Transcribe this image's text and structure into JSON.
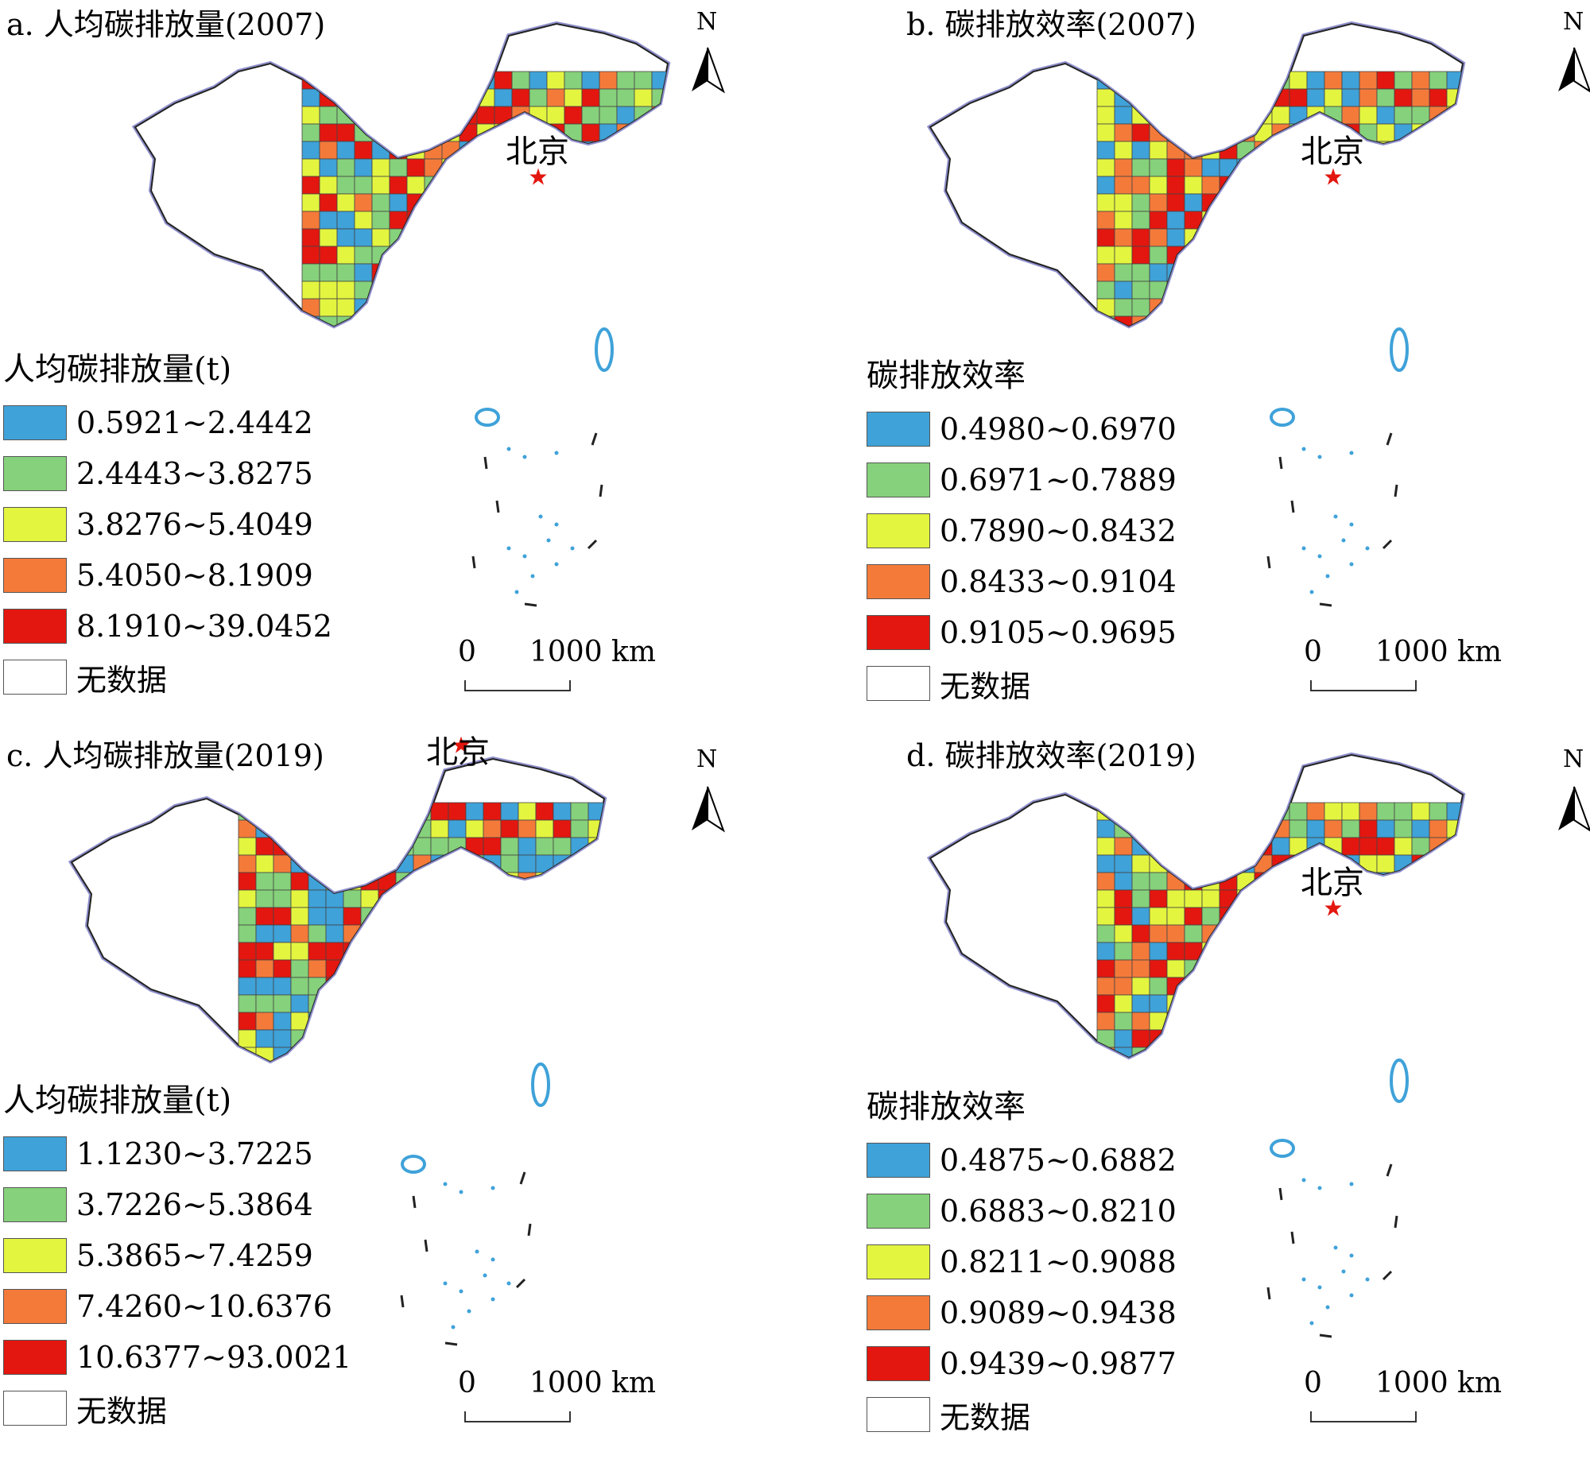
{
  "panels": [
    {
      "title": "a. 人均碳排放量(2007)",
      "beijing": "北京",
      "north": "N",
      "legend_title": "人均碳排放量(t)",
      "legend": [
        {
          "label": "0.5921~2.4442",
          "color": "#3fa2d9"
        },
        {
          "label": "2.4443~3.8275",
          "color": "#86d17b"
        },
        {
          "label": "3.8276~5.4049",
          "color": "#e3f53f"
        },
        {
          "label": "5.4050~8.1909",
          "color": "#f47a3a"
        },
        {
          "label": "8.1910~39.0452",
          "color": "#e3170f"
        },
        {
          "label": "无数据",
          "color": "#ffffff"
        }
      ],
      "scale_zero": "0",
      "scale_distance": "1000 km"
    },
    {
      "title": "b. 碳排放效率(2007)",
      "beijing": "北京",
      "north": "N",
      "legend_title": "碳排放效率",
      "legend": [
        {
          "label": "0.4980~0.6970",
          "color": "#3fa2d9"
        },
        {
          "label": "0.6971~0.7889",
          "color": "#86d17b"
        },
        {
          "label": "0.7890~0.8432",
          "color": "#e3f53f"
        },
        {
          "label": "0.8433~0.9104",
          "color": "#f47a3a"
        },
        {
          "label": "0.9105~0.9695",
          "color": "#e3170f"
        },
        {
          "label": "无数据",
          "color": "#ffffff"
        }
      ],
      "scale_zero": "0",
      "scale_distance": "1000 km"
    },
    {
      "title": "c. 人均碳排放量(2019)",
      "beijing": "北京",
      "north": "N",
      "legend_title": "人均碳排放量(t)",
      "legend": [
        {
          "label": "1.1230~3.7225",
          "color": "#3fa2d9"
        },
        {
          "label": "3.7226~5.3864",
          "color": "#86d17b"
        },
        {
          "label": "5.3865~7.4259",
          "color": "#e3f53f"
        },
        {
          "label": "7.4260~10.6376",
          "color": "#f47a3a"
        },
        {
          "label": "10.6377~93.0021",
          "color": "#e3170f"
        },
        {
          "label": "无数据",
          "color": "#ffffff"
        }
      ],
      "scale_zero": "0",
      "scale_distance": "1000 km"
    },
    {
      "title": "d. 碳排放效率(2019)",
      "beijing": "北京",
      "north": "N",
      "legend_title": "碳排放效率",
      "legend": [
        {
          "label": "0.4875~0.6882",
          "color": "#3fa2d9"
        },
        {
          "label": "0.6883~0.8210",
          "color": "#86d17b"
        },
        {
          "label": "0.8211~0.9088",
          "color": "#e3f53f"
        },
        {
          "label": "0.9089~0.9438",
          "color": "#f47a3a"
        },
        {
          "label": "0.9439~0.9877",
          "color": "#e3170f"
        },
        {
          "label": "无数据",
          "color": "#ffffff"
        }
      ],
      "scale_zero": "0",
      "scale_distance": "1000 km"
    }
  ]
}
